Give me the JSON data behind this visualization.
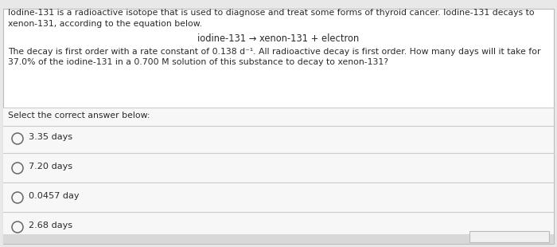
{
  "bg_color": "#e8e8e8",
  "panel_color": "#f7f7f7",
  "top_panel_color": "#ffffff",
  "border_color": "#bbbbbb",
  "divider_color": "#cccccc",
  "text_color": "#2a2a2a",
  "line1": "Iodine-131 is a radioactive isotope that is used to diagnose and treat some forms of thyroid cancer. Iodine-131 decays to",
  "line2": "xenon-131, according to the equation below.",
  "equation": "iodine-131 → xenon-131 + electron",
  "q_line1": "The decay is first order with a rate constant of 0.138 d⁻¹. All radioactive decay is first order. How many days will it take for",
  "q_line2": "37.0% of the iodine-131 in a 0.700 M solution of this substance to decay to xenon-131?",
  "select_label": "Select the correct answer below:",
  "choices": [
    "3.35 days",
    "7.20 days",
    "0.0457 day",
    "2.68 days"
  ],
  "figsize": [
    7.0,
    3.1
  ],
  "dpi": 100
}
